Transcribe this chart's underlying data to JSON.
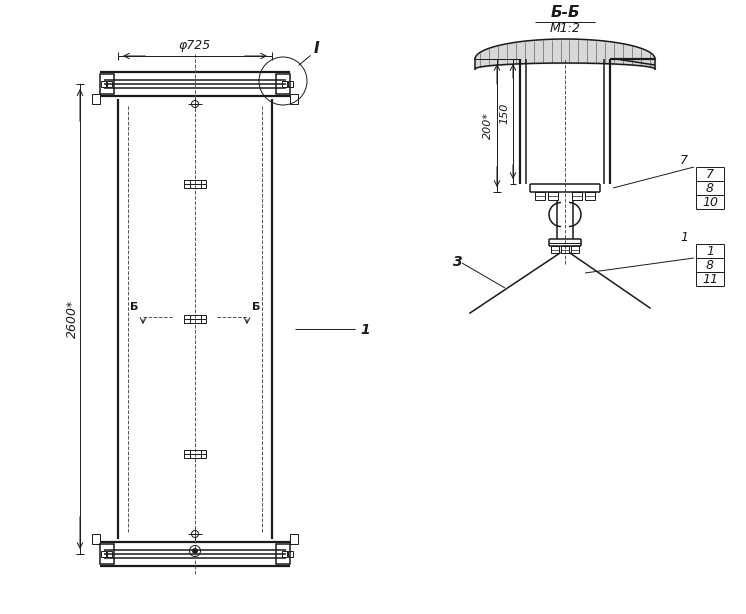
{
  "bg_color": "#ffffff",
  "lc": "#1a1a1a",
  "title_bb": "Б-Б",
  "subtitle_bb": "М1:2",
  "dim_phi": "φ725",
  "dim_height": "2600*",
  "dim_150": "150",
  "dim_200": "200*",
  "label_I": "I",
  "label_1": "1",
  "label_3": "3",
  "label_B": "Б",
  "items_right_top": [
    "7",
    "8",
    "10"
  ],
  "items_right_bot": [
    "1",
    "8",
    "11"
  ]
}
